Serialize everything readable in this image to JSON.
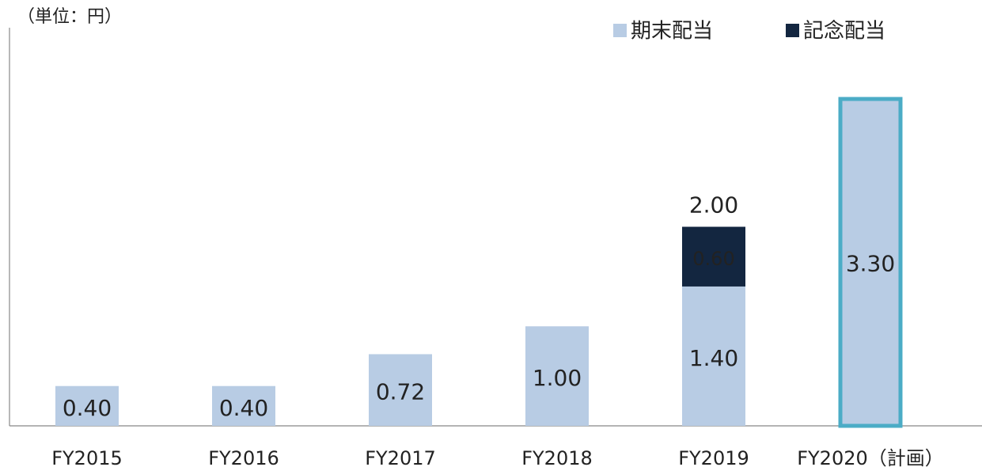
{
  "chart_data": {
    "type": "stacked_bar",
    "y_axis_label": "（単位：円）",
    "categories": [
      "FY2015",
      "FY2016",
      "FY2017",
      "FY2018",
      "FY2019",
      "FY2020（計画）"
    ],
    "series": [
      {
        "name": "期末配当",
        "color": "#b8cce4",
        "values": [
          0.4,
          0.4,
          0.72,
          1.0,
          1.4,
          3.3
        ],
        "value_labels": [
          "0.40",
          "0.40",
          "0.72",
          "1.00",
          "1.40",
          "3.30"
        ]
      },
      {
        "name": "記念配当",
        "color": "#132640",
        "values": [
          null,
          null,
          null,
          null,
          0.6,
          null
        ],
        "value_labels": [
          null,
          null,
          null,
          null,
          "0.60",
          null
        ]
      }
    ],
    "totals": [
      null,
      null,
      null,
      null,
      2.0,
      null
    ],
    "total_labels": [
      null,
      null,
      null,
      null,
      "2.00",
      null
    ],
    "total_color": "#1f3864",
    "highlight": {
      "index": 5,
      "color": "#4bacc6"
    },
    "ylim": [
      0,
      4
    ],
    "legend": "top-right"
  }
}
